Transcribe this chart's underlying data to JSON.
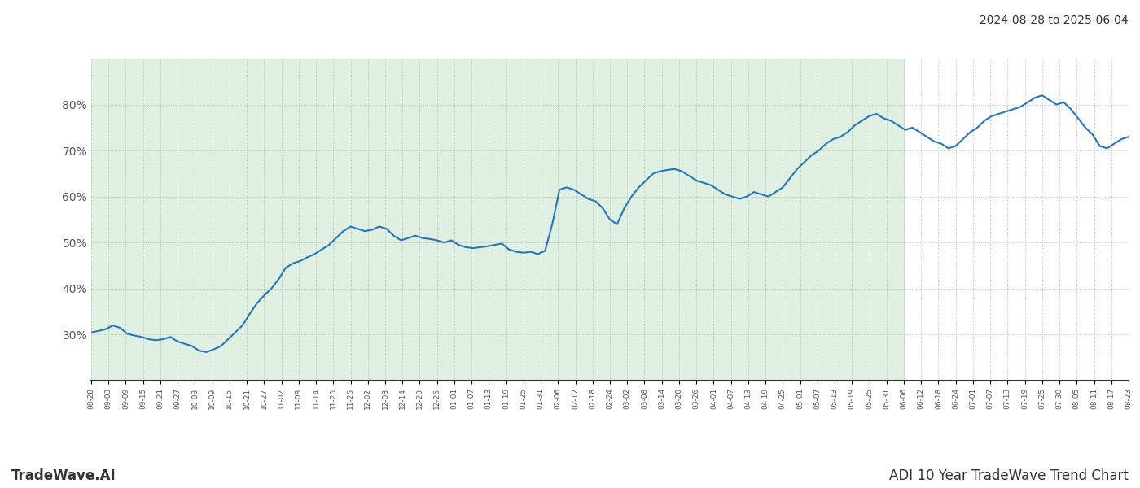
{
  "title_right": "2024-08-28 to 2025-06-04",
  "footer_left": "TradeWave.AI",
  "footer_right": "ADI 10 Year TradeWave Trend Chart",
  "line_color": "#2176c7",
  "line_width": 1.5,
  "shaded_region_color": "#d4ead4",
  "shaded_region_alpha": 0.7,
  "background_color": "#ffffff",
  "grid_color": "#bbbbbb",
  "grid_style": ":",
  "ylim": [
    20,
    90
  ],
  "yticks": [
    30,
    40,
    50,
    60,
    70,
    80
  ],
  "ytick_labels": [
    "30%",
    "40%",
    "50%",
    "60%",
    "70%",
    "80%"
  ],
  "x_labels": [
    "08-28",
    "09-03",
    "09-09",
    "09-15",
    "09-21",
    "09-27",
    "10-03",
    "10-09",
    "10-15",
    "10-21",
    "10-27",
    "11-02",
    "11-08",
    "11-14",
    "11-20",
    "11-26",
    "12-02",
    "12-08",
    "12-14",
    "12-20",
    "12-26",
    "01-01",
    "01-07",
    "01-13",
    "01-19",
    "01-25",
    "01-31",
    "02-06",
    "02-12",
    "02-18",
    "02-24",
    "03-02",
    "03-08",
    "03-14",
    "03-20",
    "03-26",
    "04-01",
    "04-07",
    "04-13",
    "04-19",
    "04-25",
    "05-01",
    "05-07",
    "05-13",
    "05-19",
    "05-25",
    "05-31",
    "06-06",
    "06-12",
    "06-18",
    "06-24",
    "07-01",
    "07-07",
    "07-13",
    "07-19",
    "07-25",
    "07-30",
    "08-05",
    "08-11",
    "08-17",
    "08-23"
  ],
  "shaded_start_label": "08-28",
  "shaded_end_label": "06-06",
  "values": [
    30.5,
    30.8,
    31.2,
    32.0,
    31.5,
    30.2,
    29.8,
    29.5,
    29.0,
    28.8,
    29.0,
    29.5,
    28.5,
    28.0,
    27.5,
    26.5,
    26.2,
    26.8,
    27.5,
    29.0,
    30.5,
    32.0,
    34.5,
    36.8,
    38.5,
    40.0,
    42.0,
    44.5,
    45.5,
    46.0,
    46.8,
    47.5,
    48.5,
    49.5,
    51.0,
    52.5,
    53.5,
    53.0,
    52.5,
    52.8,
    53.5,
    53.0,
    51.5,
    50.5,
    51.0,
    51.5,
    51.0,
    50.8,
    50.5,
    50.0,
    50.5,
    49.5,
    49.0,
    48.8,
    49.0,
    49.2,
    49.5,
    49.8,
    48.5,
    48.0,
    47.8,
    48.0,
    47.5,
    48.2,
    54.0,
    61.5,
    62.0,
    61.5,
    60.5,
    59.5,
    59.0,
    57.5,
    55.0,
    54.0,
    57.5,
    60.0,
    62.0,
    63.5,
    65.0,
    65.5,
    65.8,
    66.0,
    65.5,
    64.5,
    63.5,
    63.0,
    62.5,
    61.5,
    60.5,
    60.0,
    59.5,
    60.0,
    61.0,
    60.5,
    60.0,
    61.0,
    62.0,
    64.0,
    66.0,
    67.5,
    69.0,
    70.0,
    71.5,
    72.5,
    73.0,
    74.0,
    75.5,
    76.5,
    77.5,
    78.0,
    77.0,
    76.5,
    75.5,
    74.5,
    75.0,
    74.0,
    73.0,
    72.0,
    71.5,
    70.5,
    71.0,
    72.5,
    74.0,
    75.0,
    76.5,
    77.5,
    78.0,
    78.5,
    79.0,
    79.5,
    80.5,
    81.5,
    82.0,
    81.0,
    80.0,
    80.5,
    79.0,
    77.0,
    75.0,
    73.5,
    71.0,
    70.5,
    71.5,
    72.5,
    73.0
  ]
}
